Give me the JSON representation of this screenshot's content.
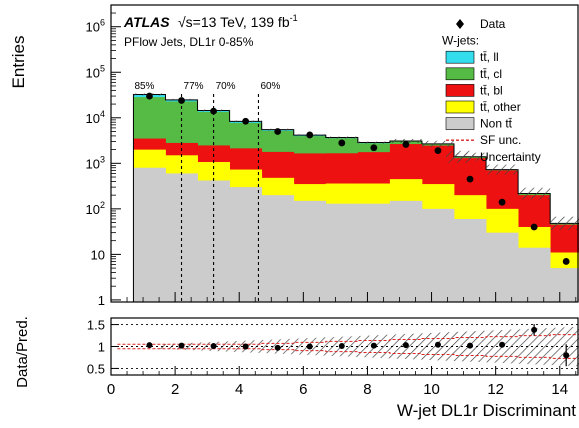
{
  "chart_data": {
    "type": "histogram",
    "colors": {
      "tt_ll": "#33ddee",
      "tt_cl": "#55bb44",
      "tt_bl": "#ee1111",
      "tt_other": "#ffff00",
      "non_tt": "#cccccc",
      "sf_unc": "#dd2222",
      "data": "#000000"
    },
    "atlas_label": "ATLAS",
    "energy_label": "√s=13 TeV, 139 fb",
    "lumi_superscript": "-1",
    "subtitle": "PFlow Jets, DL1r 0-85%",
    "main_ylabel": "Entries",
    "ratio_ylabel": "Data/Pred.",
    "xlabel": "W-jet DL1r Discriminant",
    "xlim": [
      0,
      14.6
    ],
    "main_ylim": [
      0.9,
      3000000
    ],
    "main_yscale": "log",
    "ratio_ylim": [
      0.35,
      1.65
    ],
    "x_ticks": [
      "0",
      "2",
      "4",
      "6",
      "8",
      "10",
      "12",
      "14"
    ],
    "main_y_ticks": [
      {
        "value": 1,
        "label": "1"
      },
      {
        "value": 10,
        "label": "10"
      },
      {
        "value": 100,
        "label": "10",
        "exp": "2"
      },
      {
        "value": 1000,
        "label": "10",
        "exp": "3"
      },
      {
        "value": 10000,
        "label": "10",
        "exp": "4"
      },
      {
        "value": 100000,
        "label": "10",
        "exp": "5"
      },
      {
        "value": 1000000,
        "label": "10",
        "exp": "6"
      }
    ],
    "ratio_y_ticks": [
      {
        "value": 0.5,
        "label": "0.5"
      },
      {
        "value": 1,
        "label": "1"
      },
      {
        "value": 1.5,
        "label": "1.5"
      }
    ],
    "wp_lines": [
      {
        "x": 0.7,
        "label": "85%"
      },
      {
        "x": 2.2,
        "label": "77%"
      },
      {
        "x": 3.2,
        "label": "70%"
      },
      {
        "x": 4.6,
        "label": "60%"
      }
    ],
    "bin_edges": [
      0.7,
      1.7,
      2.7,
      3.7,
      4.7,
      5.7,
      6.7,
      7.7,
      8.7,
      9.7,
      10.7,
      11.7,
      12.7,
      13.7,
      14.6
    ],
    "stack": [
      {
        "key": "non_tt",
        "values": [
          800,
          600,
          420,
          300,
          200,
          150,
          130,
          130,
          150,
          100,
          60,
          30,
          14,
          5
        ]
      },
      {
        "key": "tt_other",
        "values": [
          1200,
          900,
          650,
          430,
          280,
          200,
          230,
          230,
          300,
          250,
          140,
          70,
          26,
          6
        ]
      },
      {
        "key": "tt_bl",
        "values": [
          1500,
          1300,
          1400,
          1400,
          1300,
          1300,
          1300,
          1400,
          2200,
          2100,
          1100,
          600,
          160,
          34
        ]
      },
      {
        "key": "tt_cl",
        "values": [
          25000,
          20000,
          11000,
          5600,
          3400,
          2300,
          1900,
          1000,
          400,
          200,
          80,
          24,
          14,
          2
        ]
      },
      {
        "key": "tt_ll",
        "values": [
          4000,
          2000,
          1000,
          600,
          300,
          200,
          120,
          100,
          50,
          30,
          15,
          5,
          3,
          1
        ]
      }
    ],
    "data_points": [
      {
        "x": 1.2,
        "y": 30000
      },
      {
        "x": 2.2,
        "y": 24000
      },
      {
        "x": 3.2,
        "y": 14000
      },
      {
        "x": 4.2,
        "y": 8400
      },
      {
        "x": 5.2,
        "y": 5000
      },
      {
        "x": 6.2,
        "y": 4200
      },
      {
        "x": 7.2,
        "y": 2800
      },
      {
        "x": 8.2,
        "y": 2200
      },
      {
        "x": 9.2,
        "y": 2600
      },
      {
        "x": 10.2,
        "y": 1900
      },
      {
        "x": 11.2,
        "y": 450
      },
      {
        "x": 12.2,
        "y": 140
      },
      {
        "x": 13.2,
        "y": 40
      },
      {
        "x": 14.2,
        "y": 7
      }
    ],
    "ratio_points": [
      {
        "x": 1.2,
        "y": 1.03
      },
      {
        "x": 2.2,
        "y": 1.02
      },
      {
        "x": 3.2,
        "y": 1.01
      },
      {
        "x": 4.2,
        "y": 1.0
      },
      {
        "x": 5.2,
        "y": 0.97
      },
      {
        "x": 6.2,
        "y": 1.0
      },
      {
        "x": 7.2,
        "y": 1.01
      },
      {
        "x": 8.2,
        "y": 1.02
      },
      {
        "x": 9.2,
        "y": 1.03
      },
      {
        "x": 10.2,
        "y": 1.04
      },
      {
        "x": 11.2,
        "y": 1.02
      },
      {
        "x": 12.2,
        "y": 1.04
      },
      {
        "x": 13.2,
        "y": 1.38,
        "err": 0.13
      },
      {
        "x": 14.2,
        "y": 0.8,
        "err": 0.25
      }
    ],
    "legend": [
      {
        "key": "data",
        "label": "Data",
        "style": "marker"
      },
      {
        "key": "header",
        "label": "W-jets:",
        "style": "header"
      },
      {
        "key": "tt_ll",
        "label": "tt̄, ll",
        "style": "box"
      },
      {
        "key": "tt_cl",
        "label": "tt̄, cl",
        "style": "box"
      },
      {
        "key": "tt_bl",
        "label": "tt̄, bl",
        "style": "box"
      },
      {
        "key": "tt_other",
        "label": "tt̄, other",
        "style": "box"
      },
      {
        "key": "non_tt",
        "label": "Non tt̄",
        "style": "box"
      },
      {
        "key": "sf_unc",
        "label": "SF unc.",
        "style": "dashed"
      },
      {
        "key": "unc",
        "label": "Uncertainty",
        "style": "hatch"
      }
    ],
    "legend_position": "top-right"
  }
}
